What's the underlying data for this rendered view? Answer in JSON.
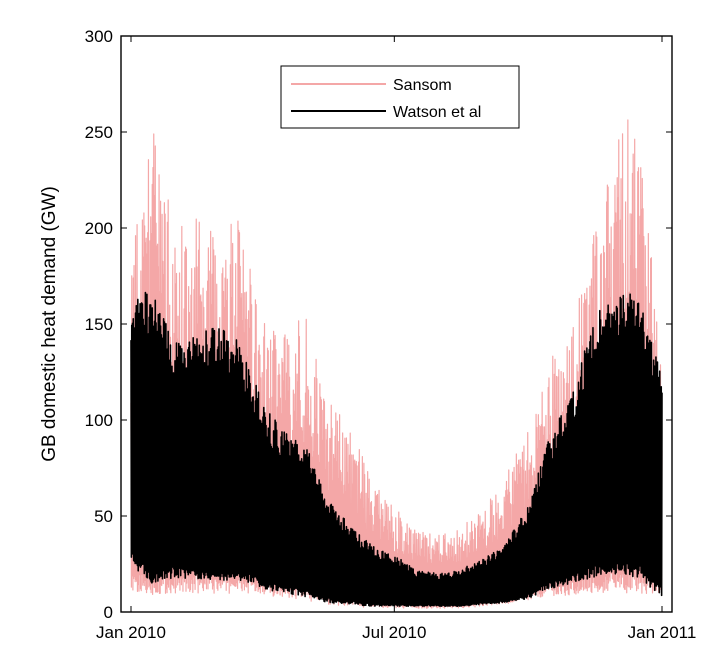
{
  "chart_data": {
    "type": "line",
    "title": "",
    "xlabel": "",
    "ylabel": "GB domestic heat demand (GW)",
    "ylim": [
      0,
      300
    ],
    "xlim": [
      "2010-01-01",
      "2011-01-01"
    ],
    "grid": false,
    "legend_position": "top-center",
    "y_ticks": [
      "0",
      "50",
      "100",
      "150",
      "200",
      "250",
      "300"
    ],
    "x_ticks": [
      {
        "date": "2010-01-01",
        "label": "Jan 2010"
      },
      {
        "date": "2010-07-01",
        "label": "Jul 2010"
      },
      {
        "date": "2011-01-01",
        "label": "Jan 2011"
      }
    ],
    "series": [
      {
        "name": "Sansom",
        "color": "#f4a7a7",
        "x": [
          "2010-01-01",
          "2010-01-15",
          "2010-02-01",
          "2010-02-15",
          "2010-03-01",
          "2010-03-15",
          "2010-04-01",
          "2010-04-15",
          "2010-05-01",
          "2010-05-15",
          "2010-06-01",
          "2010-06-15",
          "2010-07-01",
          "2010-07-15",
          "2010-08-01",
          "2010-08-15",
          "2010-09-01",
          "2010-09-15",
          "2010-10-01",
          "2010-10-15",
          "2010-11-01",
          "2010-11-15",
          "2010-12-01",
          "2010-12-15",
          "2011-01-01"
        ],
        "daily_max": [
          190,
          255,
          200,
          205,
          200,
          210,
          160,
          145,
          155,
          110,
          100,
          70,
          55,
          45,
          40,
          45,
          55,
          70,
          95,
          130,
          150,
          200,
          245,
          270,
          130
        ],
        "daily_min": [
          10,
          8,
          10,
          10,
          9,
          10,
          8,
          8,
          6,
          4,
          3,
          2,
          2,
          2,
          2,
          2,
          3,
          4,
          6,
          8,
          9,
          10,
          10,
          10,
          8
        ]
      },
      {
        "name": "Watson et al",
        "color": "#000000",
        "x": [
          "2010-01-01",
          "2010-01-15",
          "2010-02-01",
          "2010-02-15",
          "2010-03-01",
          "2010-03-15",
          "2010-04-01",
          "2010-04-15",
          "2010-05-01",
          "2010-05-15",
          "2010-06-01",
          "2010-06-15",
          "2010-07-01",
          "2010-07-15",
          "2010-08-01",
          "2010-08-15",
          "2010-09-01",
          "2010-09-15",
          "2010-10-01",
          "2010-10-15",
          "2010-11-01",
          "2010-11-15",
          "2010-12-01",
          "2010-12-15",
          "2011-01-01"
        ],
        "daily_max": [
          165,
          168,
          140,
          145,
          150,
          145,
          110,
          95,
          90,
          60,
          45,
          35,
          30,
          22,
          20,
          22,
          28,
          35,
          55,
          90,
          115,
          155,
          165,
          168,
          125
        ],
        "daily_min": [
          25,
          15,
          18,
          17,
          16,
          17,
          12,
          10,
          8,
          5,
          4,
          3,
          3,
          3,
          3,
          3,
          4,
          5,
          7,
          12,
          15,
          18,
          20,
          18,
          8
        ]
      }
    ]
  }
}
